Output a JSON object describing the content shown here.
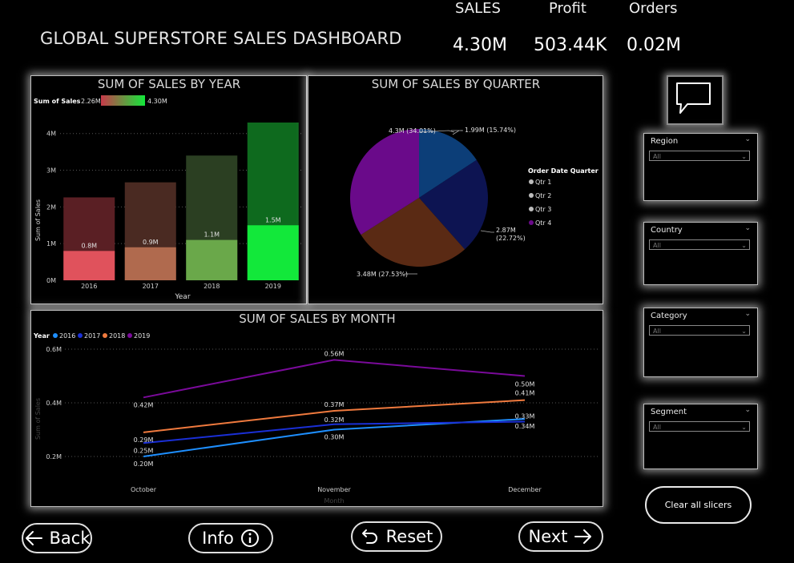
{
  "header": {
    "title": "GLOBAL SUPERSTORE SALES DASHBOARD"
  },
  "kpis": [
    {
      "label": "SALES",
      "value": "4.30M"
    },
    {
      "label": "Profit",
      "value": "503.44K"
    },
    {
      "label": "Orders",
      "value": "0.02M"
    }
  ],
  "year_chart": {
    "title": "SUM OF SALES BY YEAR",
    "legend_label": "Sum of Sales",
    "legend_min": "2.26M",
    "legend_max": "4.30M",
    "ylabel": "Sum of Sales",
    "xlabel": "Year",
    "yticks": [
      "0M",
      "1M",
      "2M",
      "3M",
      "4M"
    ],
    "categories": [
      "2016",
      "2017",
      "2018",
      "2019"
    ],
    "totals": [
      2.26,
      2.67,
      3.4,
      4.3
    ],
    "inner_values": [
      0.8,
      0.9,
      1.1,
      1.5
    ],
    "inner_labels": [
      "0.8M",
      "0.9M",
      "1.1M",
      "1.5M"
    ],
    "ymax": 4.3,
    "outer_colors": [
      "#5a1f24",
      "#4a2a22",
      "#2b3f22",
      "#0e6a1e"
    ],
    "inner_colors": [
      "#e0525c",
      "#b06a4e",
      "#6aa84a",
      "#12e83a"
    ]
  },
  "quarter_chart": {
    "title": "SUM OF SALES BY QUARTER",
    "legend_title": "Order Date Quarter",
    "legend": [
      "Qtr 1",
      "Qtr 2",
      "Qtr 3",
      "Qtr 4"
    ],
    "slices": [
      {
        "name": "Qtr 1",
        "value": 1.99,
        "label": "1.99M (15.74%)",
        "color": "#0c3e78"
      },
      {
        "name": "Qtr 2",
        "value": 2.87,
        "label_line1": "2.87M",
        "label_line2": "(22.72%)",
        "color": "#0d1452"
      },
      {
        "name": "Qtr 3",
        "value": 3.48,
        "label": "3.48M (27.53%)",
        "color": "#5a2a14"
      },
      {
        "name": "Qtr 4",
        "value": 4.3,
        "label": "4.3M (34.01%)",
        "color": "#6a0a8a"
      }
    ]
  },
  "month_chart": {
    "title": "SUM OF SALES BY MONTH",
    "legend_title": "Year",
    "ylabel": "Sum of Sales",
    "xlabel": "Month",
    "yticks": [
      "0.2M",
      "0.4M",
      "0.6M"
    ],
    "ytick_values": [
      0.2,
      0.4,
      0.6
    ],
    "categories": [
      "October",
      "November",
      "December"
    ],
    "series": [
      {
        "name": "2016",
        "color": "#1e8fff",
        "values": [
          0.2,
          0.3,
          0.34
        ],
        "labels": [
          "0.20M",
          "0.30M",
          "0.34M"
        ]
      },
      {
        "name": "2017",
        "color": "#1a2fd6",
        "values": [
          0.25,
          0.32,
          0.33
        ],
        "labels": [
          "0.25M",
          "0.32M",
          "0.33M"
        ]
      },
      {
        "name": "2018",
        "color": "#f07a3e",
        "values": [
          0.29,
          0.37,
          0.41
        ],
        "labels": [
          "0.29M",
          "0.37M",
          "0.41M"
        ]
      },
      {
        "name": "2019",
        "color": "#7a0a9a",
        "values": [
          0.42,
          0.56,
          0.5
        ],
        "labels": [
          "0.42M",
          "0.56M",
          "0.50M"
        ]
      }
    ]
  },
  "slicers": [
    {
      "label": "Region",
      "value": "All"
    },
    {
      "label": "Country",
      "value": "All"
    },
    {
      "label": "Category",
      "value": "All"
    },
    {
      "label": "Segment",
      "value": "All"
    }
  ],
  "buttons": {
    "clear": "Clear all slicers",
    "back": "Back",
    "info": "Info",
    "reset": "Reset",
    "next": "Next"
  },
  "icons": {
    "back": "arrow-left-icon",
    "info": "info-circle-icon",
    "reset": "undo-arrow-icon",
    "next": "arrow-right-icon",
    "chat": "speech-bubble-icon"
  }
}
